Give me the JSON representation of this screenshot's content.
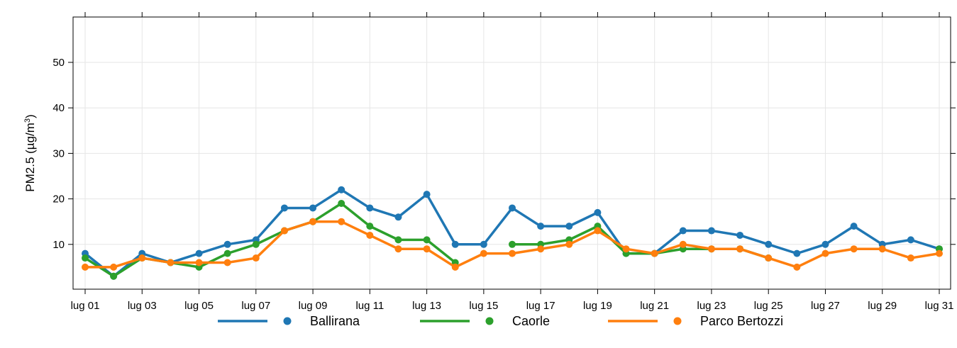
{
  "chart_data": {
    "type": "line",
    "ylabel_prefix": "PM2.5 (µg/m",
    "ylabel_sup": "3",
    "ylabel_suffix": ")",
    "xlabel": "",
    "ylim": [
      0,
      60
    ],
    "yticks": [
      10,
      20,
      30,
      40,
      50
    ],
    "grid": true,
    "legend_position": "bottom",
    "x": [
      "lug 01",
      "lug 02",
      "lug 03",
      "lug 04",
      "lug 05",
      "lug 06",
      "lug 07",
      "lug 08",
      "lug 09",
      "lug 10",
      "lug 11",
      "lug 12",
      "lug 13",
      "lug 14",
      "lug 15",
      "lug 16",
      "lug 17",
      "lug 18",
      "lug 19",
      "lug 20",
      "lug 21",
      "lug 22",
      "lug 23",
      "lug 24",
      "lug 25",
      "lug 26",
      "lug 27",
      "lug 28",
      "lug 29",
      "lug 30",
      "lug 31"
    ],
    "xtick_labels": [
      "lug 01",
      "lug 03",
      "lug 05",
      "lug 07",
      "lug 09",
      "lug 11",
      "lug 13",
      "lug 15",
      "lug 17",
      "lug 19",
      "lug 21",
      "lug 23",
      "lug 25",
      "lug 27",
      "lug 29",
      "lug 31"
    ],
    "series": [
      {
        "name": "Ballirana",
        "color": "#1f77b4",
        "values": [
          8,
          3,
          8,
          6,
          8,
          10,
          11,
          18,
          18,
          22,
          18,
          16,
          21,
          10,
          10,
          18,
          14,
          14,
          17,
          8,
          8,
          13,
          13,
          12,
          10,
          8,
          10,
          14,
          10,
          11,
          9
        ]
      },
      {
        "name": "Caorle",
        "color": "#2ca02c",
        "values": [
          7,
          3,
          7,
          6,
          5,
          8,
          10,
          13,
          15,
          19,
          14,
          11,
          11,
          6,
          null,
          10,
          10,
          11,
          14,
          8,
          8,
          9,
          9,
          9,
          7,
          null,
          null,
          null,
          null,
          null,
          9
        ]
      },
      {
        "name": "Parco Bertozzi",
        "color": "#ff7f0e",
        "values": [
          5,
          5,
          7,
          6,
          6,
          6,
          7,
          13,
          15,
          15,
          12,
          9,
          9,
          5,
          8,
          8,
          9,
          10,
          13,
          9,
          8,
          10,
          9,
          9,
          7,
          5,
          8,
          9,
          9,
          7,
          8
        ]
      }
    ]
  }
}
